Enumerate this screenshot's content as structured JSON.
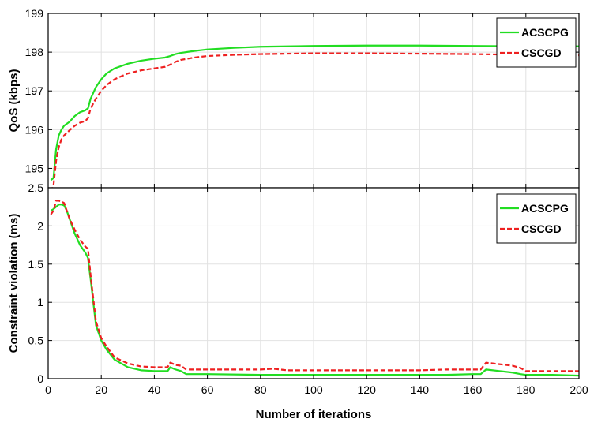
{
  "chart_data": [
    {
      "type": "line",
      "title": "",
      "xlabel": "",
      "ylabel": "QoS (kbps)",
      "xlim": [
        0,
        200
      ],
      "ylim": [
        194.5,
        199
      ],
      "grid": true,
      "legend_position": "top-right",
      "x_ticks": [
        0,
        20,
        40,
        60,
        80,
        100,
        120,
        140,
        160,
        180,
        200
      ],
      "x_tick_labels": [],
      "y_ticks": [
        195,
        196,
        197,
        198,
        199
      ],
      "y_tick_labels": [
        "195",
        "196",
        "197",
        "198",
        "199"
      ],
      "series": [
        {
          "name": "ACSCPG",
          "color": "#22dd22",
          "dash": "solid",
          "x": [
            1,
            2,
            3,
            4,
            5,
            6,
            8,
            10,
            12,
            14,
            15,
            16,
            18,
            20,
            22,
            25,
            30,
            35,
            40,
            44,
            46,
            48,
            50,
            55,
            60,
            70,
            80,
            90,
            100,
            120,
            140,
            160,
            180,
            200
          ],
          "y": [
            194.7,
            194.75,
            195.5,
            195.85,
            196.0,
            196.1,
            196.2,
            196.35,
            196.45,
            196.5,
            196.55,
            196.8,
            197.1,
            197.3,
            197.45,
            197.58,
            197.7,
            197.78,
            197.83,
            197.86,
            197.9,
            197.95,
            197.98,
            198.03,
            198.07,
            198.11,
            198.14,
            198.15,
            198.16,
            198.17,
            198.17,
            198.16,
            198.15,
            198.15
          ]
        },
        {
          "name": "CSCGD",
          "color": "#ee2020",
          "dash": "dashed",
          "x": [
            1,
            2,
            3,
            4,
            5,
            6,
            8,
            10,
            12,
            14,
            15,
            16,
            18,
            20,
            22,
            25,
            30,
            35,
            40,
            44,
            46,
            48,
            50,
            55,
            60,
            70,
            80,
            90,
            100,
            120,
            140,
            160,
            180,
            200
          ],
          "y": [
            194.4,
            194.55,
            195.2,
            195.55,
            195.75,
            195.85,
            195.98,
            196.1,
            196.18,
            196.22,
            196.3,
            196.55,
            196.8,
            197.0,
            197.15,
            197.3,
            197.45,
            197.53,
            197.58,
            197.62,
            197.68,
            197.75,
            197.8,
            197.86,
            197.9,
            197.93,
            197.95,
            197.96,
            197.97,
            197.97,
            197.96,
            197.95,
            197.93,
            197.92
          ]
        }
      ]
    },
    {
      "type": "line",
      "title": "",
      "xlabel": "Number of iterations",
      "ylabel": "Constraint violation (ms)",
      "xlim": [
        0,
        200
      ],
      "ylim": [
        0,
        2.5
      ],
      "grid": true,
      "legend_position": "top-right",
      "x_ticks": [
        0,
        20,
        40,
        60,
        80,
        100,
        120,
        140,
        160,
        180,
        200
      ],
      "x_tick_labels": [
        "0",
        "20",
        "40",
        "60",
        "80",
        "100",
        "120",
        "140",
        "160",
        "180",
        "200"
      ],
      "y_ticks": [
        0,
        0.5,
        1,
        1.5,
        2,
        2.5
      ],
      "y_tick_labels": [
        "0",
        "0.5",
        "1",
        "1.5",
        "2",
        "2.5"
      ],
      "series": [
        {
          "name": "ACSCPG",
          "color": "#22dd22",
          "dash": "solid",
          "x": [
            1,
            2,
            3,
            4,
            5,
            6,
            7,
            8,
            10,
            12,
            14,
            15,
            16,
            17,
            18,
            20,
            22,
            25,
            30,
            35,
            40,
            45,
            46,
            48,
            50,
            52,
            55,
            60,
            80,
            100,
            120,
            140,
            150,
            160,
            163,
            165,
            170,
            175,
            178,
            180,
            190,
            200
          ],
          "y": [
            2.2,
            2.22,
            2.25,
            2.28,
            2.28,
            2.27,
            2.2,
            2.1,
            1.9,
            1.75,
            1.65,
            1.58,
            1.3,
            1.0,
            0.7,
            0.5,
            0.38,
            0.25,
            0.15,
            0.11,
            0.1,
            0.1,
            0.15,
            0.12,
            0.1,
            0.06,
            0.06,
            0.06,
            0.05,
            0.05,
            0.05,
            0.05,
            0.05,
            0.06,
            0.06,
            0.12,
            0.1,
            0.08,
            0.06,
            0.05,
            0.05,
            0.04
          ]
        },
        {
          "name": "CSCGD",
          "color": "#ee2020",
          "dash": "dashed",
          "x": [
            1,
            2,
            3,
            4,
            5,
            6,
            7,
            8,
            10,
            12,
            14,
            15,
            16,
            17,
            18,
            20,
            22,
            25,
            30,
            35,
            40,
            45,
            46,
            48,
            50,
            52,
            55,
            60,
            80,
            85,
            90,
            100,
            120,
            140,
            150,
            160,
            163,
            165,
            170,
            175,
            178,
            180,
            190,
            200
          ],
          "y": [
            2.15,
            2.2,
            2.33,
            2.33,
            2.32,
            2.3,
            2.2,
            2.1,
            1.95,
            1.82,
            1.73,
            1.7,
            1.35,
            1.05,
            0.75,
            0.53,
            0.42,
            0.28,
            0.2,
            0.16,
            0.15,
            0.15,
            0.21,
            0.18,
            0.17,
            0.12,
            0.12,
            0.12,
            0.12,
            0.13,
            0.11,
            0.11,
            0.11,
            0.11,
            0.12,
            0.12,
            0.12,
            0.21,
            0.19,
            0.17,
            0.14,
            0.1,
            0.1,
            0.1
          ]
        }
      ]
    }
  ]
}
